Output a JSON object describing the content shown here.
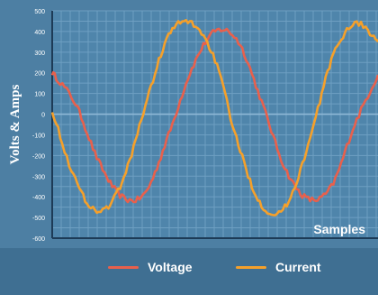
{
  "chart_data": {
    "type": "line",
    "title": "",
    "xlabel": "Samples",
    "ylabel": "Volts & Amps",
    "ylim": [
      -600,
      500
    ],
    "yticks": [
      500,
      400,
      300,
      200,
      100,
      0,
      -100,
      -200,
      -300,
      -400,
      -500,
      -600
    ],
    "grid": true,
    "legend_position": "bottom",
    "x": [
      0,
      25,
      50,
      75,
      100,
      125,
      150,
      175,
      200,
      225,
      250,
      275,
      300,
      325,
      350
    ],
    "series": [
      {
        "name": "Voltage",
        "color": "#e8604c",
        "values": [
          200,
          50,
          -230,
          -400,
          -380,
          -100,
          220,
          400,
          350,
          60,
          -260,
          -410,
          -350,
          -50,
          190
        ]
      },
      {
        "name": "Current",
        "color": "#f5a02a",
        "values": [
          20,
          -320,
          -470,
          -330,
          40,
          380,
          440,
          260,
          -150,
          -440,
          -450,
          -150,
          260,
          440,
          350
        ]
      }
    ]
  },
  "colors": {
    "background": "#4d7fa3",
    "plot_area": "#4f85ab",
    "grid": "#6e9fc2",
    "axis": "#1d3b57",
    "legend_bar": "#3f6f92"
  }
}
